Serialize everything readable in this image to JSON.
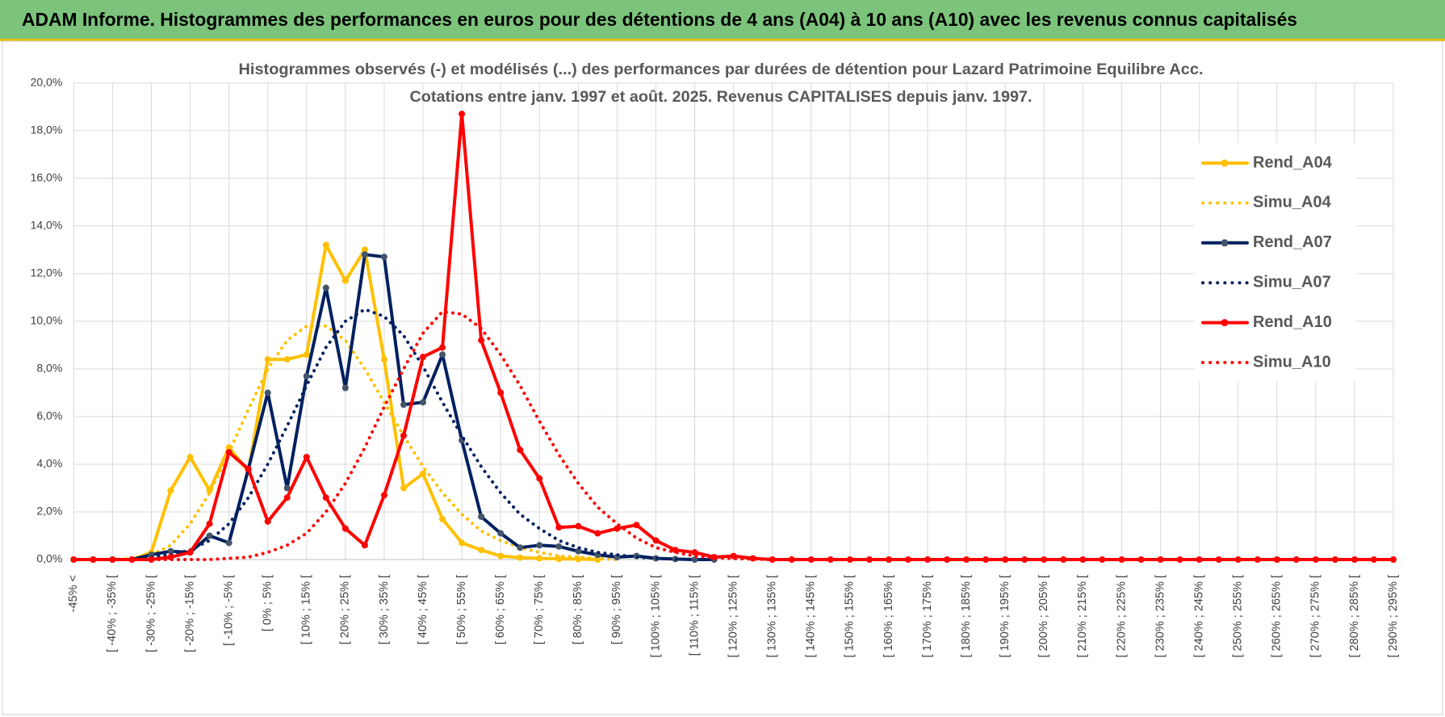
{
  "header": {
    "title": "ADAM Informe. Histogrammes des performances en euros pour des détentions de 4 ans (A04) à 10 ans (A10) avec les revenus connus capitalisés"
  },
  "chart_data": {
    "type": "line",
    "title": "Histogrammes observés (-) et modélisés (...) des performances par durées de détention pour Lazard Patrimoine Equilibre Acc.",
    "subtitle": "Cotations entre janv. 1997 et août. 2025. Revenus CAPITALISES depuis janv. 1997.",
    "categories": [
      "-45% <",
      null,
      "[ -40% ; -35% [",
      null,
      "[ -30% ; -25% [",
      null,
      "[ -20% ; -15% [",
      null,
      "[ -10% ; -5% [",
      null,
      "[ 0% ; 5% [",
      null,
      "[ 10% ; 15% [",
      null,
      "[ 20% ; 25% [",
      null,
      "[ 30% ; 35% [",
      null,
      "[ 40% ; 45% [",
      null,
      "[ 50% ; 55% [",
      null,
      "[ 60% ; 65% [",
      null,
      "[ 70% ; 75% [",
      null,
      "[ 80% ; 85% [",
      null,
      "[ 90% ; 95% [",
      null,
      "[ 100% ; 105% [",
      null,
      "[ 110% ; 115% [",
      null,
      "[ 120% ; 125% [",
      null,
      "[ 130% ; 135% [",
      null,
      "[ 140% ; 145% [",
      null,
      "[ 150% ; 155% [",
      null,
      "[ 160% ; 165% [",
      null,
      "[ 170% ; 175% [",
      null,
      "[ 180% ; 185% [",
      null,
      "[ 190% ; 195% [",
      null,
      "[ 200% ; 205% [",
      null,
      "[ 210% ; 215% [",
      null,
      "[ 220% ; 225% [",
      null,
      "[ 230% ; 235% [",
      null,
      "[ 240% ; 245% [",
      null,
      "[ 250% ; 255% [",
      null,
      "[ 260% ; 265% [",
      null,
      "[ 270% ; 275% [",
      null,
      "[ 280% ; 285% [",
      null,
      "[ 290% ; 295% ["
    ],
    "series": [
      {
        "name": "Rend_A04",
        "color": "#ffc000",
        "style": "solid",
        "marker": true,
        "values": [
          0,
          0,
          0,
          0,
          0.3,
          2.9,
          4.3,
          2.9,
          4.7,
          3.7,
          8.4,
          8.4,
          8.6,
          13.2,
          11.7,
          13.0,
          8.4,
          3.0,
          3.6,
          1.7,
          0.7,
          0.4,
          0.15,
          0.08,
          0.05,
          0.03,
          0.02,
          0,
          null,
          null,
          null,
          null,
          null,
          null,
          null,
          null,
          null,
          null,
          null,
          null,
          null,
          null,
          null,
          null,
          null,
          null,
          null,
          null,
          null,
          null,
          null,
          null,
          null,
          null,
          null,
          null,
          null,
          null,
          null,
          null,
          null,
          null,
          null,
          null,
          null,
          null,
          null,
          null,
          null
        ]
      },
      {
        "name": "Simu_A04",
        "color": "#ffc000",
        "style": "dotted",
        "marker": false,
        "values": [
          0,
          0,
          0,
          0.05,
          0.2,
          0.6,
          1.5,
          2.8,
          4.5,
          6.3,
          8.0,
          9.2,
          9.8,
          9.8,
          9.2,
          8.0,
          6.6,
          5.2,
          3.9,
          2.8,
          1.9,
          1.2,
          0.8,
          0.5,
          0.3,
          0.15,
          0.1,
          0.05,
          0,
          null,
          null,
          null,
          null,
          null,
          null,
          null,
          null,
          null,
          null,
          null,
          null,
          null,
          null,
          null,
          null,
          null,
          null,
          null,
          null,
          null,
          null,
          null,
          null,
          null,
          null,
          null,
          null,
          null,
          null,
          null,
          null,
          null,
          null,
          null,
          null,
          null,
          null,
          null,
          null
        ]
      },
      {
        "name": "Rend_A07",
        "color": "#002060",
        "style": "solid",
        "marker": true,
        "values": [
          0,
          0,
          0,
          0,
          0.2,
          0.35,
          0.3,
          1.0,
          0.7,
          3.8,
          7.0,
          3.0,
          7.7,
          11.4,
          7.2,
          12.8,
          12.7,
          6.5,
          6.6,
          8.6,
          5.0,
          1.8,
          1.1,
          0.5,
          0.6,
          0.55,
          0.35,
          0.2,
          0.1,
          0.15,
          0.05,
          0.02,
          0,
          0,
          null,
          null,
          null,
          null,
          null,
          null,
          null,
          null,
          null,
          null,
          null,
          null,
          null,
          null,
          null,
          null,
          null,
          null,
          null,
          null,
          null,
          null,
          null,
          null,
          null,
          null,
          null,
          null,
          null,
          null,
          null,
          null,
          null,
          null,
          null
        ]
      },
      {
        "name": "Simu_A07",
        "color": "#002060",
        "style": "dotted",
        "marker": false,
        "values": [
          0,
          0,
          0,
          0,
          0.1,
          0.2,
          0.4,
          0.8,
          1.5,
          2.6,
          4.0,
          5.6,
          7.3,
          8.9,
          10.0,
          10.5,
          10.2,
          9.4,
          8.1,
          6.6,
          5.2,
          3.9,
          2.8,
          1.9,
          1.3,
          0.8,
          0.5,
          0.3,
          0.2,
          0.1,
          0.05,
          0.02,
          0,
          null,
          null,
          null,
          null,
          null,
          null,
          null,
          null,
          null,
          null,
          null,
          null,
          null,
          null,
          null,
          null,
          null,
          null,
          null,
          null,
          null,
          null,
          null,
          null,
          null,
          null,
          null,
          null,
          null,
          null,
          null,
          null,
          null,
          null,
          null,
          null
        ]
      },
      {
        "name": "Rend_A10",
        "color": "#ff0000",
        "style": "solid",
        "marker": true,
        "values": [
          0,
          0,
          0,
          0,
          0,
          0.1,
          0.3,
          1.5,
          4.5,
          3.8,
          1.6,
          2.6,
          4.3,
          2.6,
          1.3,
          0.6,
          2.7,
          5.2,
          8.5,
          8.9,
          18.7,
          9.2,
          7.0,
          4.6,
          3.4,
          1.35,
          1.4,
          1.1,
          1.3,
          1.45,
          0.8,
          0.4,
          0.3,
          0.1,
          0.15,
          0.05,
          0,
          0,
          0,
          0,
          0,
          0,
          0,
          0,
          0,
          0,
          0,
          0,
          0,
          0,
          0,
          0,
          0,
          0,
          0,
          0,
          0,
          0,
          0,
          0,
          0,
          0,
          0,
          0,
          0,
          0,
          0,
          0,
          0
        ]
      },
      {
        "name": "Simu_A10",
        "color": "#ff0000",
        "style": "dotted",
        "marker": false,
        "values": [
          0,
          0,
          0,
          0,
          0,
          0,
          0,
          0,
          0.05,
          0.1,
          0.3,
          0.6,
          1.1,
          2.0,
          3.2,
          4.7,
          6.4,
          8.0,
          9.5,
          10.4,
          10.3,
          9.7,
          8.6,
          7.3,
          5.8,
          4.4,
          3.2,
          2.2,
          1.5,
          0.9,
          0.5,
          0.3,
          0.15,
          0.08,
          0.04,
          0.02,
          0,
          null,
          null,
          null,
          null,
          null,
          null,
          null,
          null,
          null,
          null,
          null,
          null,
          null,
          null,
          null,
          null,
          null,
          null,
          null,
          null,
          null,
          null,
          null,
          null,
          null,
          null,
          null,
          null,
          null,
          null,
          null,
          null
        ]
      }
    ],
    "ylim": [
      0,
      20
    ],
    "yticks": [
      {
        "value": 0,
        "label": "0,0%"
      },
      {
        "value": 2,
        "label": "2,0%"
      },
      {
        "value": 4,
        "label": "4,0%"
      },
      {
        "value": 6,
        "label": "6,0%"
      },
      {
        "value": 8,
        "label": "8,0%"
      },
      {
        "value": 10,
        "label": "10,0%"
      },
      {
        "value": 12,
        "label": "12,0%"
      },
      {
        "value": 14,
        "label": "14,0%"
      },
      {
        "value": 16,
        "label": "16,0%"
      },
      {
        "value": 18,
        "label": "18,0%"
      },
      {
        "value": 20,
        "label": "20,0%"
      }
    ],
    "grid": true,
    "legend": "right"
  }
}
